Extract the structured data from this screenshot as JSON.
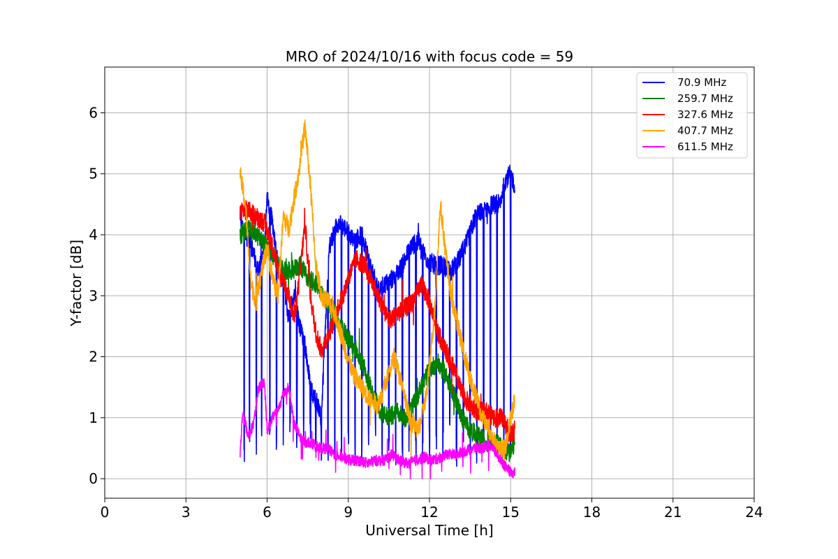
{
  "chart_data": {
    "type": "line",
    "title": "MRO of 2024/10/16 with focus code = 59",
    "xlabel": "Universal Time [h]",
    "ylabel": "Y-factor [dB]",
    "xlim": [
      0,
      24
    ],
    "ylim": [
      -0.32,
      6.75
    ],
    "xticks": [
      0,
      3,
      6,
      9,
      12,
      15,
      18,
      21,
      24
    ],
    "yticks": [
      0,
      1,
      2,
      3,
      4,
      5,
      6
    ],
    "grid": true,
    "legend_position": "top-right",
    "series": [
      {
        "name": " 70.9 MHz",
        "color": "#0000ff",
        "x": [
          5.0,
          5.2,
          5.35,
          5.5,
          5.7,
          5.9,
          6.0,
          6.2,
          6.4,
          6.6,
          6.8,
          7.0,
          7.2,
          7.4,
          7.6,
          7.8,
          8.0,
          8.3,
          8.6,
          8.9,
          9.2,
          9.5,
          9.8,
          10.1,
          10.4,
          10.7,
          11.0,
          11.3,
          11.6,
          11.9,
          12.2,
          12.5,
          12.8,
          13.1,
          13.4,
          13.7,
          14.0,
          14.3,
          14.6,
          14.8,
          15.0,
          15.15
        ],
        "y": [
          4.2,
          4.0,
          3.9,
          3.7,
          3.4,
          3.8,
          4.6,
          4.2,
          3.5,
          3.3,
          2.6,
          3.0,
          2.5,
          2.2,
          1.5,
          1.3,
          1.0,
          3.8,
          4.2,
          4.1,
          3.9,
          4.0,
          3.5,
          3.1,
          3.2,
          3.3,
          3.5,
          3.8,
          3.9,
          3.6,
          3.5,
          3.5,
          3.4,
          3.6,
          3.9,
          4.3,
          4.4,
          4.5,
          4.5,
          4.9,
          5.0,
          4.8
        ],
        "spikes": [
          5.15,
          5.35,
          5.6,
          5.8,
          6.1,
          6.35,
          6.6,
          6.85,
          7.1,
          7.35,
          7.6,
          7.8,
          8.0,
          8.25,
          8.5,
          8.75,
          9.0,
          9.25,
          9.5,
          9.75,
          10.0,
          10.25,
          10.5,
          10.75,
          11.0,
          11.25,
          11.5,
          11.75,
          12.0,
          12.25,
          12.5,
          12.75,
          13.0,
          13.25,
          13.5,
          13.75,
          14.0,
          14.25,
          14.5,
          14.75,
          15.0
        ]
      },
      {
        "name": "259.7 MHz",
        "color": "#008000",
        "x": [
          5.0,
          5.3,
          5.6,
          6.0,
          6.3,
          6.6,
          6.9,
          7.2,
          7.5,
          7.8,
          8.1,
          8.4,
          8.7,
          9.0,
          9.3,
          9.6,
          9.9,
          10.2,
          10.5,
          10.8,
          11.1,
          11.4,
          11.7,
          12.0,
          12.3,
          12.6,
          12.9,
          13.2,
          13.5,
          13.8,
          14.1,
          14.4,
          14.7,
          15.0,
          15.15
        ],
        "y": [
          4.0,
          4.1,
          4.0,
          3.8,
          3.6,
          3.4,
          3.4,
          3.5,
          3.3,
          3.2,
          3.0,
          2.8,
          2.5,
          2.3,
          2.1,
          1.8,
          1.4,
          1.1,
          1.0,
          1.1,
          1.0,
          1.2,
          1.5,
          1.8,
          1.9,
          1.7,
          1.4,
          1.0,
          0.8,
          0.7,
          0.6,
          0.6,
          0.5,
          0.4,
          0.6
        ]
      },
      {
        "name": "327.6 MHz",
        "color": "#ff0000",
        "x": [
          5.0,
          5.3,
          5.6,
          5.9,
          6.2,
          6.5,
          6.8,
          7.0,
          7.2,
          7.4,
          7.6,
          7.8,
          8.0,
          8.2,
          8.4,
          8.6,
          8.8,
          9.0,
          9.3,
          9.6,
          9.9,
          10.2,
          10.5,
          10.8,
          11.1,
          11.4,
          11.7,
          12.0,
          12.3,
          12.6,
          12.9,
          13.2,
          13.5,
          13.8,
          14.1,
          14.4,
          14.7,
          15.0,
          15.15
        ],
        "y": [
          4.4,
          4.4,
          4.3,
          4.2,
          3.8,
          3.3,
          3.0,
          2.6,
          3.3,
          4.2,
          3.0,
          2.4,
          2.1,
          2.3,
          2.5,
          2.8,
          3.0,
          3.3,
          3.6,
          3.5,
          3.2,
          2.9,
          2.6,
          2.7,
          2.8,
          2.9,
          3.2,
          2.9,
          2.4,
          2.1,
          1.8,
          1.4,
          1.2,
          1.1,
          1.1,
          1.0,
          1.0,
          0.7,
          0.8
        ]
      },
      {
        "name": "407.7 MHz",
        "color": "#ffa500",
        "x": [
          5.0,
          5.2,
          5.4,
          5.6,
          5.8,
          6.0,
          6.2,
          6.4,
          6.6,
          6.8,
          7.0,
          7.2,
          7.4,
          7.6,
          7.8,
          8.0,
          8.3,
          8.6,
          8.9,
          9.2,
          9.5,
          9.8,
          10.1,
          10.4,
          10.7,
          11.0,
          11.3,
          11.6,
          11.9,
          12.2,
          12.4,
          12.6,
          12.8,
          13.0,
          13.3,
          13.6,
          13.9,
          14.2,
          14.5,
          14.8,
          15.0,
          15.15
        ],
        "y": [
          5.0,
          4.5,
          3.2,
          2.9,
          3.4,
          3.8,
          3.3,
          3.0,
          4.3,
          4.1,
          4.6,
          5.1,
          5.8,
          4.8,
          3.5,
          3.0,
          2.9,
          2.6,
          2.1,
          1.7,
          1.5,
          1.3,
          1.2,
          1.6,
          2.0,
          1.5,
          0.9,
          0.8,
          1.4,
          2.8,
          4.5,
          3.7,
          3.0,
          2.6,
          2.0,
          1.5,
          1.1,
          0.8,
          0.5,
          0.5,
          1.0,
          1.3
        ]
      },
      {
        "name": "611.5 MHz",
        "color": "#ff00ff",
        "x": [
          5.0,
          5.1,
          5.3,
          5.5,
          5.7,
          5.9,
          6.0,
          6.2,
          6.4,
          6.6,
          6.8,
          7.0,
          7.2,
          7.4,
          7.6,
          7.9,
          8.2,
          8.5,
          8.8,
          9.1,
          9.4,
          9.7,
          10.0,
          10.3,
          10.6,
          10.9,
          11.2,
          11.5,
          11.8,
          12.1,
          12.4,
          12.7,
          13.0,
          13.3,
          13.6,
          13.9,
          14.2,
          14.5,
          14.8,
          15.0,
          15.15
        ],
        "y": [
          0.4,
          1.1,
          0.7,
          0.9,
          1.5,
          1.6,
          0.8,
          1.0,
          1.1,
          1.4,
          1.5,
          0.9,
          0.7,
          0.6,
          0.6,
          0.5,
          0.5,
          0.4,
          0.35,
          0.3,
          0.3,
          0.25,
          0.3,
          0.3,
          0.4,
          0.3,
          0.25,
          0.3,
          0.35,
          0.3,
          0.35,
          0.4,
          0.4,
          0.45,
          0.5,
          0.5,
          0.55,
          0.4,
          0.2,
          0.1,
          0.1
        ]
      }
    ]
  }
}
